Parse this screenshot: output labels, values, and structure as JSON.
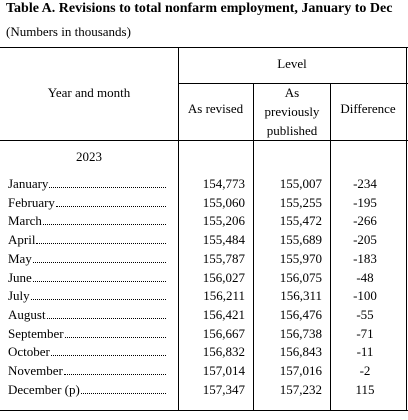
{
  "header": {
    "title": "Table A. Revisions to total nonfarm employment, January to Dec",
    "subtitle": "(Numbers in thousands)"
  },
  "table": {
    "row_header": "Year and month",
    "group_header": "Level",
    "columns": [
      "As revised",
      "As previously published",
      "Difference"
    ],
    "year": "2023",
    "rows": [
      [
        "January",
        "154,773",
        "155,007",
        "-234"
      ],
      [
        "February",
        "155,060",
        "155,255",
        "-195"
      ],
      [
        "March",
        "155,206",
        "155,472",
        "-266"
      ],
      [
        "April",
        "155,484",
        "155,689",
        "-205"
      ],
      [
        "May",
        "155,787",
        "155,970",
        "-183"
      ],
      [
        "June",
        "156,027",
        "156,075",
        "-48"
      ],
      [
        "July",
        "156,211",
        "156,311",
        "-100"
      ],
      [
        "August",
        "156,421",
        "156,476",
        "-55"
      ],
      [
        "September",
        "156,667",
        "156,738",
        "-71"
      ],
      [
        "October",
        "156,832",
        "156,843",
        "-11"
      ],
      [
        "November",
        "157,014",
        "157,016",
        "-2"
      ],
      [
        "December (p)",
        "157,347",
        "157,232",
        "115"
      ]
    ]
  }
}
